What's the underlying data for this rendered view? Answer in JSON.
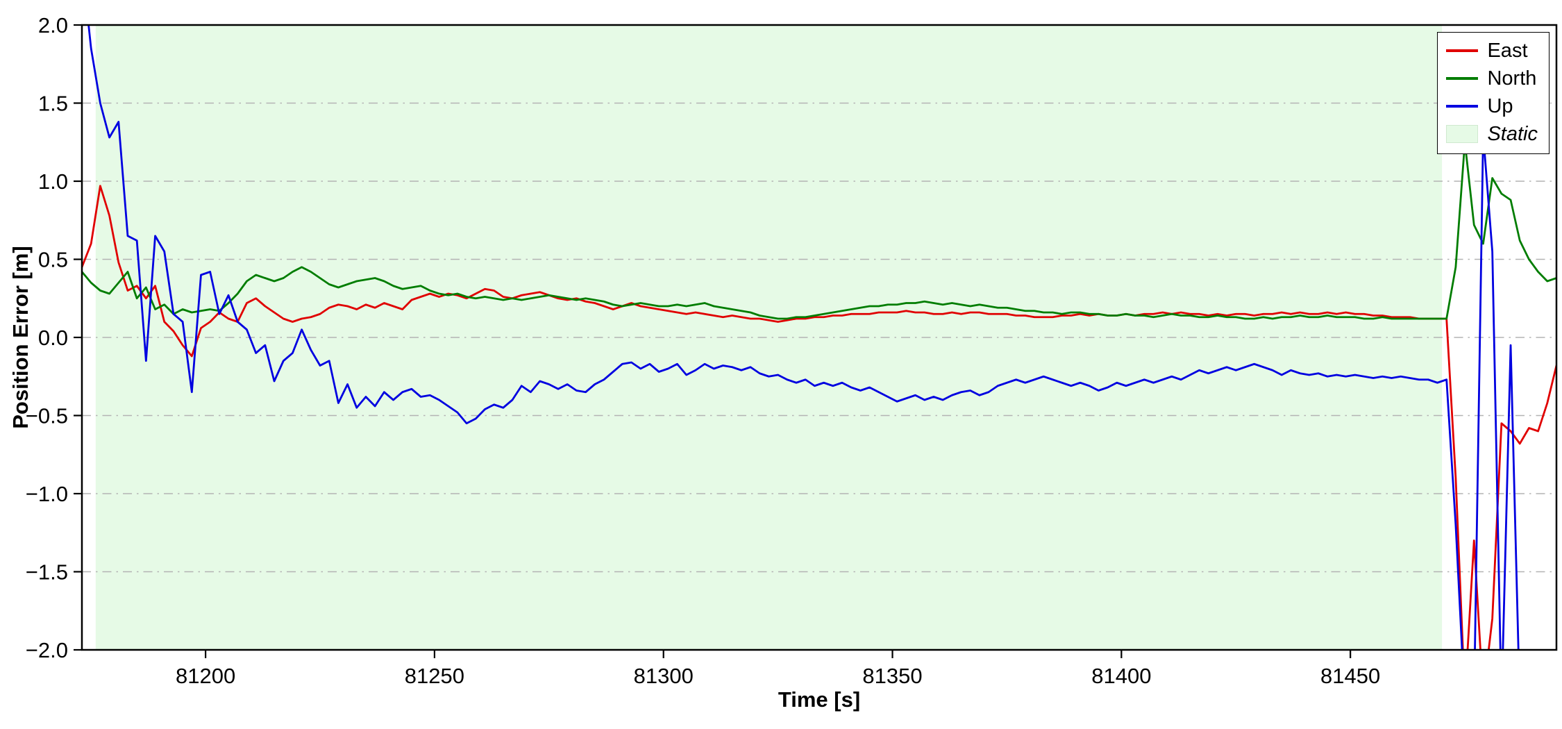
{
  "chart_data": {
    "type": "line",
    "title": "",
    "xlabel": "Time [s]",
    "ylabel": "Position Error [m]",
    "xlim": [
      81173,
      81495
    ],
    "ylim": [
      -2.0,
      2.0
    ],
    "xticks": [
      81200,
      81250,
      81300,
      81350,
      81400,
      81450
    ],
    "yticks": [
      -2.0,
      -1.5,
      -1.0,
      -0.5,
      0.0,
      0.5,
      1.0,
      1.5,
      2.0
    ],
    "grid": "horizontal dash-dot gridlines at each y tick",
    "legend_position": "upper right",
    "colors": {
      "east": "#e00000",
      "north": "#007d00",
      "up": "#0000e0",
      "static_region": "#e6fae6",
      "grid": "#b3b3b3",
      "frame": "#000000",
      "background": "#ffffff"
    },
    "static_region": {
      "label": "Static",
      "x_start": 81176,
      "x_end": 81470
    },
    "x_start": 81173,
    "x_step": 2,
    "series": [
      {
        "name": "East",
        "color_key": "east",
        "values": [
          0.45,
          0.6,
          0.97,
          0.78,
          0.48,
          0.3,
          0.33,
          0.25,
          0.33,
          0.1,
          0.04,
          -0.05,
          -0.12,
          0.06,
          0.1,
          0.16,
          0.12,
          0.1,
          0.22,
          0.25,
          0.2,
          0.16,
          0.12,
          0.1,
          0.12,
          0.13,
          0.15,
          0.19,
          0.21,
          0.2,
          0.18,
          0.21,
          0.19,
          0.22,
          0.2,
          0.18,
          0.24,
          0.26,
          0.28,
          0.26,
          0.28,
          0.27,
          0.25,
          0.28,
          0.31,
          0.3,
          0.26,
          0.25,
          0.27,
          0.28,
          0.29,
          0.27,
          0.25,
          0.24,
          0.25,
          0.23,
          0.22,
          0.2,
          0.18,
          0.2,
          0.22,
          0.2,
          0.19,
          0.18,
          0.17,
          0.16,
          0.15,
          0.16,
          0.15,
          0.14,
          0.13,
          0.14,
          0.13,
          0.12,
          0.12,
          0.11,
          0.1,
          0.11,
          0.12,
          0.12,
          0.13,
          0.13,
          0.14,
          0.14,
          0.15,
          0.15,
          0.15,
          0.16,
          0.16,
          0.16,
          0.17,
          0.16,
          0.16,
          0.15,
          0.15,
          0.16,
          0.15,
          0.16,
          0.16,
          0.15,
          0.15,
          0.15,
          0.14,
          0.14,
          0.13,
          0.13,
          0.13,
          0.14,
          0.14,
          0.15,
          0.14,
          0.15,
          0.14,
          0.14,
          0.15,
          0.14,
          0.15,
          0.15,
          0.16,
          0.15,
          0.16,
          0.15,
          0.15,
          0.14,
          0.15,
          0.14,
          0.15,
          0.15,
          0.14,
          0.15,
          0.15,
          0.16,
          0.15,
          0.16,
          0.15,
          0.15,
          0.16,
          0.15,
          0.16,
          0.15,
          0.15,
          0.14,
          0.14,
          0.13,
          0.13,
          0.13,
          0.12,
          0.12,
          0.12,
          0.12,
          -0.9,
          -2.3,
          -1.3,
          -2.3,
          -1.8,
          -0.55,
          -0.6,
          -0.68,
          -0.58,
          -0.6,
          -0.42,
          -0.18
        ]
      },
      {
        "name": "North",
        "color_key": "north",
        "values": [
          0.42,
          0.35,
          0.3,
          0.28,
          0.35,
          0.42,
          0.25,
          0.32,
          0.18,
          0.21,
          0.15,
          0.18,
          0.16,
          0.17,
          0.18,
          0.17,
          0.22,
          0.28,
          0.36,
          0.4,
          0.38,
          0.36,
          0.38,
          0.42,
          0.45,
          0.42,
          0.38,
          0.34,
          0.32,
          0.34,
          0.36,
          0.37,
          0.38,
          0.36,
          0.33,
          0.31,
          0.32,
          0.33,
          0.3,
          0.28,
          0.27,
          0.28,
          0.26,
          0.25,
          0.26,
          0.25,
          0.24,
          0.25,
          0.24,
          0.25,
          0.26,
          0.27,
          0.26,
          0.25,
          0.24,
          0.25,
          0.24,
          0.23,
          0.21,
          0.2,
          0.21,
          0.22,
          0.21,
          0.2,
          0.2,
          0.21,
          0.2,
          0.21,
          0.22,
          0.2,
          0.19,
          0.18,
          0.17,
          0.16,
          0.14,
          0.13,
          0.12,
          0.12,
          0.13,
          0.13,
          0.14,
          0.15,
          0.16,
          0.17,
          0.18,
          0.19,
          0.2,
          0.2,
          0.21,
          0.21,
          0.22,
          0.22,
          0.23,
          0.22,
          0.21,
          0.22,
          0.21,
          0.2,
          0.21,
          0.2,
          0.19,
          0.19,
          0.18,
          0.17,
          0.17,
          0.16,
          0.16,
          0.15,
          0.16,
          0.16,
          0.15,
          0.15,
          0.14,
          0.14,
          0.15,
          0.14,
          0.14,
          0.13,
          0.14,
          0.15,
          0.14,
          0.14,
          0.13,
          0.13,
          0.14,
          0.13,
          0.13,
          0.12,
          0.12,
          0.13,
          0.12,
          0.13,
          0.13,
          0.14,
          0.13,
          0.13,
          0.14,
          0.13,
          0.13,
          0.13,
          0.12,
          0.12,
          0.13,
          0.12,
          0.12,
          0.12,
          0.12,
          0.12,
          0.12,
          0.12,
          0.45,
          1.25,
          0.72,
          0.6,
          1.02,
          0.92,
          0.88,
          0.62,
          0.5,
          0.42,
          0.36,
          0.38
        ]
      },
      {
        "name": "Up",
        "color_key": "up",
        "values": [
          2.4,
          1.85,
          1.5,
          1.28,
          1.38,
          0.65,
          0.62,
          -0.15,
          0.65,
          0.55,
          0.15,
          0.1,
          -0.35,
          0.4,
          0.42,
          0.15,
          0.27,
          0.1,
          0.05,
          -0.1,
          -0.05,
          -0.28,
          -0.15,
          -0.1,
          0.05,
          -0.08,
          -0.18,
          -0.15,
          -0.42,
          -0.3,
          -0.45,
          -0.38,
          -0.44,
          -0.35,
          -0.4,
          -0.35,
          -0.33,
          -0.38,
          -0.37,
          -0.4,
          -0.44,
          -0.48,
          -0.55,
          -0.52,
          -0.46,
          -0.43,
          -0.45,
          -0.4,
          -0.31,
          -0.35,
          -0.28,
          -0.3,
          -0.33,
          -0.3,
          -0.34,
          -0.35,
          -0.3,
          -0.27,
          -0.22,
          -0.17,
          -0.16,
          -0.2,
          -0.17,
          -0.22,
          -0.2,
          -0.17,
          -0.24,
          -0.21,
          -0.17,
          -0.2,
          -0.18,
          -0.19,
          -0.21,
          -0.19,
          -0.23,
          -0.25,
          -0.24,
          -0.27,
          -0.29,
          -0.27,
          -0.31,
          -0.29,
          -0.31,
          -0.29,
          -0.32,
          -0.34,
          -0.32,
          -0.35,
          -0.38,
          -0.41,
          -0.39,
          -0.37,
          -0.4,
          -0.38,
          -0.4,
          -0.37,
          -0.35,
          -0.34,
          -0.37,
          -0.35,
          -0.31,
          -0.29,
          -0.27,
          -0.29,
          -0.27,
          -0.25,
          -0.27,
          -0.29,
          -0.31,
          -0.29,
          -0.31,
          -0.34,
          -0.32,
          -0.29,
          -0.31,
          -0.29,
          -0.27,
          -0.29,
          -0.27,
          -0.25,
          -0.27,
          -0.24,
          -0.21,
          -0.23,
          -0.21,
          -0.19,
          -0.21,
          -0.19,
          -0.17,
          -0.19,
          -0.21,
          -0.24,
          -0.21,
          -0.23,
          -0.24,
          -0.23,
          -0.25,
          -0.24,
          -0.25,
          -0.24,
          -0.25,
          -0.26,
          -0.25,
          -0.26,
          -0.25,
          -0.26,
          -0.27,
          -0.27,
          -0.29,
          -0.27,
          -1.2,
          -2.35,
          -2.35,
          1.3,
          0.55,
          -2.35,
          -0.05,
          -2.35,
          -2.4,
          -2.4,
          -2.4,
          -2.4
        ]
      }
    ],
    "legend_entries": [
      "East",
      "North",
      "Up",
      "Static"
    ]
  }
}
